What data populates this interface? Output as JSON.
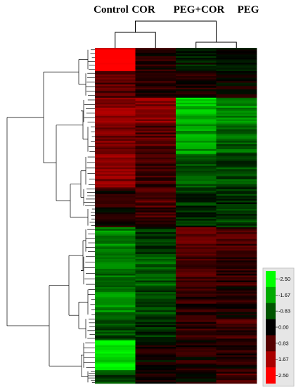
{
  "chart_data": {
    "type": "heatmap",
    "title": "",
    "xlabel": "",
    "ylabel": "",
    "columns": [
      "Control",
      "COR",
      "PEG+COR",
      "PEG"
    ],
    "color_scale": {
      "min": -2.5,
      "max": 2.5,
      "low_color": "#00ff00",
      "mid_color": "#000000",
      "high_color": "#ff0000",
      "ticks": [
        "-2.50",
        "-1.67",
        "-0.83",
        "0.00",
        "0.83",
        "1.67",
        "2.50"
      ]
    },
    "column_dendrogram": [
      [
        "PEG+COR",
        "PEG"
      ],
      [
        "Control",
        "COR"
      ]
    ],
    "row_clusters": [
      {
        "rows": 14,
        "values": [
          2.5,
          0.3,
          -0.2,
          -0.1
        ]
      },
      {
        "rows": 16,
        "values": [
          0.8,
          0.4,
          0.3,
          0.1
        ]
      },
      {
        "rows": 16,
        "values": [
          1.4,
          1.3,
          -1.9,
          -1.4
        ]
      },
      {
        "rows": 18,
        "values": [
          1.1,
          0.8,
          -1.5,
          -0.9
        ]
      },
      {
        "rows": 20,
        "values": [
          1.3,
          0.6,
          -0.9,
          -0.7
        ]
      },
      {
        "rows": 12,
        "values": [
          0.3,
          0.8,
          -0.5,
          -0.4
        ]
      },
      {
        "rows": 12,
        "values": [
          0.2,
          0.6,
          -0.3,
          -0.6
        ]
      },
      {
        "rows": 16,
        "values": [
          -1.3,
          -0.5,
          0.9,
          0.7
        ]
      },
      {
        "rows": 20,
        "values": [
          -1.1,
          -0.9,
          0.6,
          0.5
        ]
      },
      {
        "rows": 18,
        "values": [
          -1.3,
          -0.7,
          0.4,
          0.3
        ]
      },
      {
        "rows": 14,
        "values": [
          -0.7,
          -0.4,
          0.4,
          0.6
        ]
      },
      {
        "rows": 18,
        "values": [
          -2.2,
          0.1,
          0.3,
          0.3
        ]
      },
      {
        "rows": 8,
        "values": [
          -0.6,
          0.3,
          0.2,
          0.6
        ]
      }
    ],
    "grid": false,
    "legend": "right"
  },
  "legend": {
    "ticks": [
      "-2.50",
      "-1.67",
      "-0.83",
      "0.00",
      "0.83",
      "1.67",
      "2.50"
    ]
  }
}
